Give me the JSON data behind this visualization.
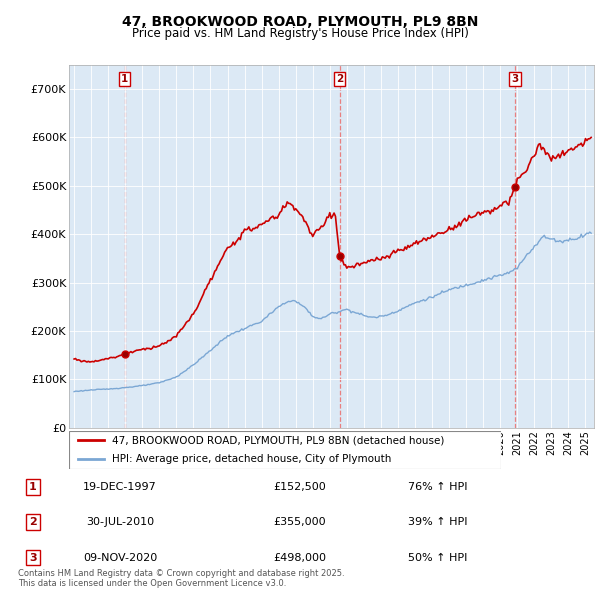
{
  "title": "47, BROOKWOOD ROAD, PLYMOUTH, PL9 8BN",
  "subtitle": "Price paid vs. HM Land Registry's House Price Index (HPI)",
  "ylim": [
    0,
    750000
  ],
  "yticks": [
    0,
    100000,
    200000,
    300000,
    400000,
    500000,
    600000,
    700000
  ],
  "ytick_labels": [
    "£0",
    "£100K",
    "£200K",
    "£300K",
    "£400K",
    "£500K",
    "£600K",
    "£700K"
  ],
  "purchase_years": [
    1997.97,
    2010.58,
    2020.86
  ],
  "purchase_prices": [
    152500,
    355000,
    498000
  ],
  "purchase_labels": [
    "1",
    "2",
    "3"
  ],
  "hpi_color": "#7BA7D4",
  "price_color": "#CC0000",
  "dashed_color": "#E88080",
  "background_color": "#DCE9F5",
  "legend_label_price": "47, BROOKWOOD ROAD, PLYMOUTH, PL9 8BN (detached house)",
  "legend_label_hpi": "HPI: Average price, detached house, City of Plymouth",
  "table_entries": [
    {
      "label": "1",
      "date": "19-DEC-1997",
      "price": "£152,500",
      "change": "76% ↑ HPI"
    },
    {
      "label": "2",
      "date": "30-JUL-2010",
      "price": "£355,000",
      "change": "39% ↑ HPI"
    },
    {
      "label": "3",
      "date": "09-NOV-2020",
      "price": "£498,000",
      "change": "50% ↑ HPI"
    }
  ],
  "footnote": "Contains HM Land Registry data © Crown copyright and database right 2025.\nThis data is licensed under the Open Government Licence v3.0.",
  "xlim_start": 1994.7,
  "xlim_end": 2025.5,
  "hpi_waypoints": {
    "1995.0": 75000,
    "1996.0": 78000,
    "1997.0": 80000,
    "1998.0": 83000,
    "1999.0": 87000,
    "2000.0": 93000,
    "2001.0": 105000,
    "2002.0": 130000,
    "2003.0": 160000,
    "2004.0": 190000,
    "2005.0": 205000,
    "2006.0": 220000,
    "2007.0": 250000,
    "2007.8": 265000,
    "2008.5": 250000,
    "2009.0": 230000,
    "2009.5": 225000,
    "2010.0": 235000,
    "2010.5": 240000,
    "2011.0": 245000,
    "2011.5": 238000,
    "2012.0": 232000,
    "2012.5": 228000,
    "2013.0": 230000,
    "2013.5": 235000,
    "2014.0": 242000,
    "2015.0": 258000,
    "2016.0": 270000,
    "2017.0": 285000,
    "2018.0": 295000,
    "2019.0": 305000,
    "2019.5": 310000,
    "2020.0": 315000,
    "2020.5": 320000,
    "2021.0": 330000,
    "2021.5": 355000,
    "2022.0": 375000,
    "2022.5": 395000,
    "2023.0": 390000,
    "2023.5": 385000,
    "2024.0": 388000,
    "2024.5": 392000,
    "2025.0": 400000,
    "2025.4": 405000
  },
  "prop_waypoints": {
    "1995.0": 142000,
    "1995.5": 138000,
    "1996.0": 136000,
    "1996.5": 140000,
    "1997.0": 143000,
    "1997.5": 147000,
    "1997.97": 152500,
    "1998.5": 158000,
    "1999.0": 162000,
    "1999.5": 165000,
    "2000.0": 170000,
    "2000.5": 178000,
    "2001.0": 190000,
    "2002.0": 235000,
    "2003.0": 305000,
    "2004.0": 370000,
    "2005.0": 405000,
    "2006.0": 420000,
    "2007.0": 440000,
    "2007.5": 465000,
    "2008.0": 455000,
    "2008.5": 430000,
    "2009.0": 395000,
    "2009.5": 415000,
    "2010.0": 440000,
    "2010.3": 445000,
    "2010.58": 355000,
    "2010.8": 340000,
    "2011.0": 330000,
    "2011.5": 335000,
    "2012.0": 340000,
    "2012.5": 345000,
    "2013.0": 350000,
    "2013.5": 355000,
    "2014.0": 365000,
    "2015.0": 380000,
    "2016.0": 395000,
    "2017.0": 410000,
    "2017.5": 420000,
    "2018.0": 430000,
    "2018.5": 440000,
    "2019.0": 445000,
    "2019.5": 450000,
    "2020.0": 458000,
    "2020.5": 465000,
    "2020.86": 498000,
    "2021.0": 510000,
    "2021.5": 530000,
    "2022.0": 565000,
    "2022.3": 590000,
    "2022.5": 575000,
    "2023.0": 555000,
    "2023.5": 560000,
    "2024.0": 575000,
    "2024.5": 580000,
    "2025.0": 590000,
    "2025.4": 600000
  }
}
